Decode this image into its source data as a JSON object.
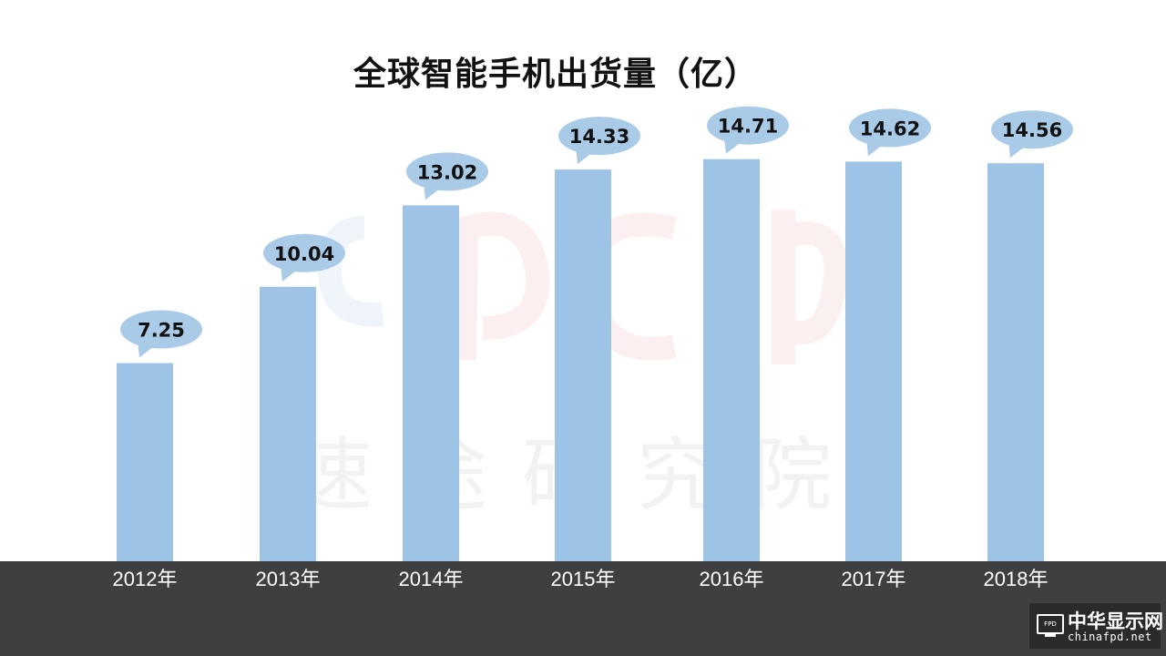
{
  "chart_data": {
    "type": "bar",
    "title": "全球智能手机出货量（亿）",
    "categories": [
      "2012年",
      "2013年",
      "2014年",
      "2015年",
      "2016年",
      "2017年",
      "2018年"
    ],
    "values": [
      7.25,
      10.04,
      13.02,
      14.33,
      14.71,
      14.62,
      14.56
    ],
    "data_labels": [
      "7.25",
      "10.04",
      "13.02",
      "14.33",
      "14.71",
      "14.62",
      "14.56"
    ],
    "ylim": [
      0,
      16
    ],
    "grid": false,
    "legend": "none",
    "bar_color": "#9dc3e6",
    "label_bubble_color": "#a9cbe8"
  },
  "watermark": {
    "text": "速途研究院"
  },
  "logo": {
    "badge": "FPD",
    "name": "中华显示网",
    "url": "chinafpd.net"
  },
  "colors": {
    "bottom_band": "#3f3f3f",
    "axis_label": "#ffffff"
  }
}
